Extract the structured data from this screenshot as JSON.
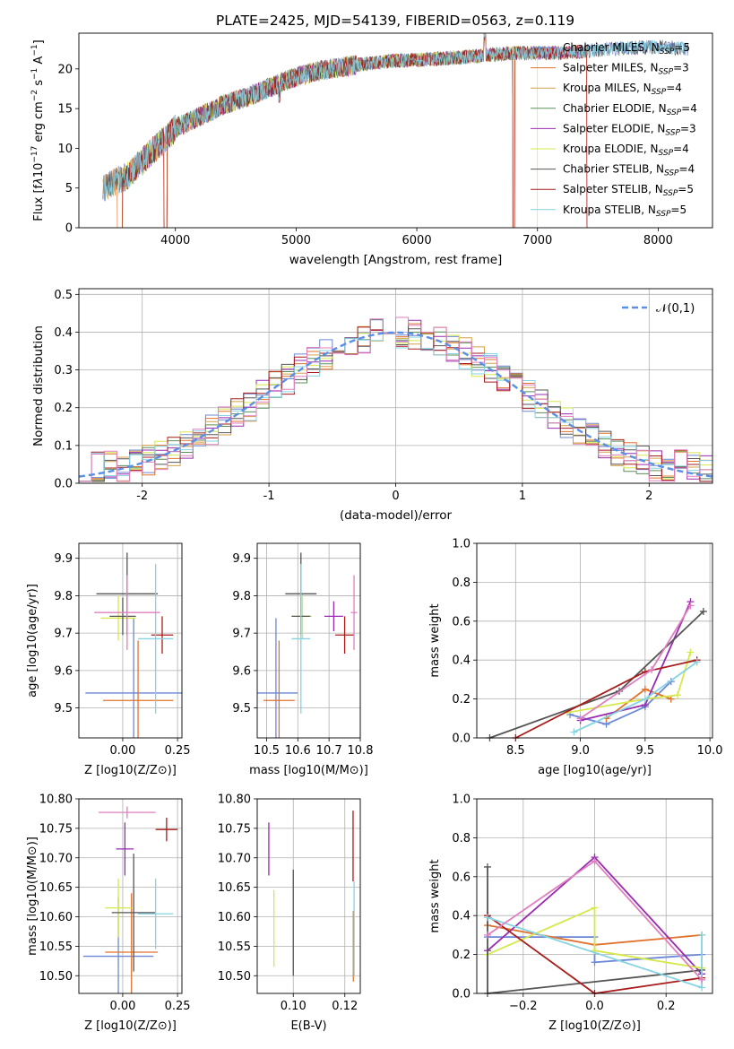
{
  "figure_title": "PLATE=2425, MJD=54139, FIBERID=0563, z=0.119",
  "colors": {
    "Chabrier MILES": "#6c87d6",
    "Salpeter MILES": "#e0722c",
    "Kroupa MILES": "#d4a04a",
    "Chabrier ELODIE": "#5b8f5b",
    "Salpeter ELODIE": "#9a2bb0",
    "Kroupa ELODIE": "#d6e84a",
    "Chabrier STELIB": "#555555",
    "Salpeter STELIB": "#a81c1c",
    "Kroupa STELIB": "#86d3e3",
    "Chabrier MILES pink": "#e07fc0",
    "normal": "#5b8fe6"
  },
  "chart_data": [
    {
      "id": "spectrum",
      "type": "line",
      "xlabel": "wavelength [Angstrom, rest frame]",
      "ylabel": "Flux [f_λ 10^-17 erg cm^-2 s^-1 A^-1]",
      "xlim": [
        3200,
        8450
      ],
      "ylim": [
        0,
        24.5
      ],
      "xticks": [
        4000,
        5000,
        6000,
        7000,
        8000
      ],
      "yticks": [
        0,
        5,
        10,
        15,
        20
      ],
      "legend_position": "right",
      "legend": [
        {
          "label": "Chabrier MILES, N",
          "sub": "SSP",
          "suffix": "=5"
        },
        {
          "label": "Salpeter MILES, N",
          "sub": "SSP",
          "suffix": "=3"
        },
        {
          "label": "Kroupa MILES, N",
          "sub": "SSP",
          "suffix": "=4"
        },
        {
          "label": "Chabrier ELODIE, N",
          "sub": "SSP",
          "suffix": "=4"
        },
        {
          "label": "Salpeter ELODIE, N",
          "sub": "SSP",
          "suffix": "=3"
        },
        {
          "label": "Kroupa ELODIE, N",
          "sub": "SSP",
          "suffix": "=4"
        },
        {
          "label": "Chabrier STELIB, N",
          "sub": "SSP",
          "suffix": "=4"
        },
        {
          "label": "Salpeter STELIB, N",
          "sub": "SSP",
          "suffix": "=5"
        },
        {
          "label": "Kroupa STELIB, N",
          "sub": "SSP",
          "suffix": "=5"
        }
      ],
      "continuum": [
        [
          3400,
          5.0
        ],
        [
          3600,
          6.5
        ],
        [
          3800,
          9.5
        ],
        [
          4000,
          12.5
        ],
        [
          4200,
          14.0
        ],
        [
          4400,
          15.5
        ],
        [
          4600,
          16.5
        ],
        [
          4800,
          17.8
        ],
        [
          5000,
          19.0
        ],
        [
          5200,
          19.8
        ],
        [
          5500,
          20.5
        ],
        [
          5800,
          21.0
        ],
        [
          6100,
          21.2
        ],
        [
          6400,
          21.5
        ],
        [
          6800,
          22.0
        ],
        [
          7200,
          22.0
        ],
        [
          7600,
          22.5
        ],
        [
          8000,
          22.8
        ],
        [
          8250,
          22.5
        ]
      ],
      "dropouts": [
        [
          3520,
          3560
        ],
        [
          3905,
          3930
        ],
        [
          6795,
          6810
        ],
        [
          7410,
          7420
        ]
      ]
    },
    {
      "id": "residual_histogram",
      "type": "line",
      "xlabel": "(data-model)/error",
      "ylabel": "Normed distribution",
      "xlim": [
        -2.5,
        2.5
      ],
      "ylim": [
        0,
        0.515
      ],
      "xticks": [
        -2,
        -1,
        0,
        1,
        2
      ],
      "yticks": [
        0.0,
        0.1,
        0.2,
        0.3,
        0.4,
        0.5
      ],
      "legend": "𝒩(0,1)",
      "legend_position": "upper right",
      "bin_width": 0.1,
      "reference_curve": "standard normal, mean 0, sigma 1"
    },
    {
      "id": "age_vs_Z",
      "type": "scatter",
      "xlabel": "Z [log10(Z/Z⊙)]",
      "ylabel": "age  [log10(age/yr)]",
      "xlim": [
        -0.2,
        0.27
      ],
      "ylim": [
        9.42,
        9.94
      ],
      "xticks": [
        0.0,
        0.25
      ],
      "xticklabels": [
        "0.00",
        "0.25"
      ],
      "yticks": [
        9.5,
        9.6,
        9.7,
        9.8,
        9.9
      ],
      "points": [
        {
          "series": "Chabrier MILES",
          "x": 0.05,
          "xerr": 0.22,
          "y": 9.54,
          "yerr": 0.2
        },
        {
          "series": "Salpeter MILES",
          "x": 0.07,
          "xerr": 0.16,
          "y": 9.52,
          "yerr": 0.16
        },
        {
          "series": "Kroupa ELODIE",
          "x": -0.02,
          "xerr": 0.08,
          "y": 9.74,
          "yerr": 0.06
        },
        {
          "series": "Chabrier STELIB",
          "x": 0.0,
          "xerr": 0.06,
          "y": 9.745,
          "yerr": 0.05
        },
        {
          "series": "Chabrier STELIB",
          "x": 0.02,
          "xerr": 0.14,
          "y": 9.805,
          "yerr": 0.11
        },
        {
          "series": "Salpeter STELIB",
          "x": 0.18,
          "xerr": 0.05,
          "y": 9.695,
          "yerr": 0.05
        },
        {
          "series": "Kroupa STELIB",
          "x": 0.15,
          "xerr": 0.08,
          "y": 9.685,
          "yerr": 0.2
        },
        {
          "series": "Chabrier MILES pink",
          "x": 0.02,
          "xerr": 0.15,
          "y": 9.755,
          "yerr": 0.1
        }
      ]
    },
    {
      "id": "age_vs_mass",
      "type": "scatter",
      "xlabel": "mass [log10(M/M⊙)]",
      "ylabel": "",
      "xlim": [
        10.47,
        10.8
      ],
      "ylim": [
        9.42,
        9.94
      ],
      "xticks": [
        10.5,
        10.6,
        10.7,
        10.8
      ],
      "yticks": [
        9.5,
        9.6,
        9.7,
        9.8,
        9.9
      ],
      "points": [
        {
          "series": "Chabrier MILES",
          "x": 10.53,
          "xerr": 0.07,
          "y": 9.54,
          "yerr": 0.2
        },
        {
          "series": "Salpeter MILES",
          "x": 10.54,
          "xerr": 0.05,
          "y": 9.52,
          "yerr": 0.16
        },
        {
          "series": "Kroupa ELODIE",
          "x": 10.615,
          "xerr": 0.03,
          "y": 9.745,
          "yerr": 0.06
        },
        {
          "series": "Chabrier STELIB",
          "x": 10.61,
          "xerr": 0.03,
          "y": 9.745,
          "yerr": 0.05
        },
        {
          "series": "Chabrier STELIB",
          "x": 10.61,
          "xerr": 0.05,
          "y": 9.805,
          "yerr": 0.11
        },
        {
          "series": "Salpeter ELODIE",
          "x": 10.715,
          "xerr": 0.03,
          "y": 9.745,
          "yerr": 0.04
        },
        {
          "series": "Salpeter STELIB",
          "x": 10.75,
          "xerr": 0.03,
          "y": 9.695,
          "yerr": 0.05
        },
        {
          "series": "Kroupa STELIB",
          "x": 10.61,
          "xerr": 0.03,
          "y": 9.685,
          "yerr": 0.2
        },
        {
          "series": "Chabrier MILES pink",
          "x": 10.78,
          "xerr": 0.01,
          "y": 9.755,
          "yerr": 0.1
        }
      ]
    },
    {
      "id": "weight_vs_age",
      "type": "line",
      "xlabel": "age  [log10(age/yr)]",
      "ylabel": "mass weight",
      "xlim": [
        8.2,
        10.02
      ],
      "ylim": [
        0,
        1.0
      ],
      "xticks": [
        8.5,
        9.0,
        9.5,
        10.0
      ],
      "yticks": [
        0.0,
        0.2,
        0.4,
        0.6,
        0.8,
        1.0
      ],
      "series": [
        {
          "name": "Chabrier MILES",
          "x": [
            8.92,
            9.2,
            9.5,
            9.7
          ],
          "y": [
            0.12,
            0.07,
            0.16,
            0.29
          ]
        },
        {
          "name": "Salpeter MILES",
          "x": [
            9.2,
            9.5,
            9.7
          ],
          "y": [
            0.1,
            0.25,
            0.2
          ]
        },
        {
          "name": "Salpeter ELODIE",
          "x": [
            9.0,
            9.5,
            9.85
          ],
          "y": [
            0.09,
            0.17,
            0.7
          ]
        },
        {
          "name": "Kroupa ELODIE",
          "x": [
            8.9,
            9.5,
            9.75,
            9.85
          ],
          "y": [
            0.13,
            0.2,
            0.22,
            0.44
          ]
        },
        {
          "name": "Chabrier STELIB",
          "x": [
            8.3,
            9.3,
            9.95
          ],
          "y": [
            0.0,
            0.24,
            0.65
          ]
        },
        {
          "name": "Salpeter STELIB",
          "x": [
            8.5,
            9.5,
            9.9
          ],
          "y": [
            0.0,
            0.34,
            0.4
          ]
        },
        {
          "name": "Kroupa STELIB",
          "x": [
            8.95,
            9.5,
            9.9
          ],
          "y": [
            0.03,
            0.2,
            0.39
          ]
        },
        {
          "name": "Chabrier MILES pink",
          "x": [
            9.0,
            9.55,
            9.85
          ],
          "y": [
            0.1,
            0.35,
            0.68
          ]
        }
      ]
    },
    {
      "id": "mass_vs_Z",
      "type": "scatter",
      "xlabel": "Z [log10(Z/Z⊙)]",
      "ylabel": "mass [log10(M/M⊙)]",
      "xlim": [
        -0.2,
        0.27
      ],
      "ylim": [
        10.47,
        10.8
      ],
      "xticks": [
        0.0,
        0.25
      ],
      "xticklabels": [
        "0.00",
        "0.25"
      ],
      "yticks": [
        10.5,
        10.55,
        10.6,
        10.65,
        10.7,
        10.75,
        10.8
      ],
      "points": [
        {
          "series": "Chabrier MILES",
          "x": -0.02,
          "xerr": 0.16,
          "y": 10.533,
          "yerr": 0.1
        },
        {
          "series": "Salpeter MILES",
          "x": 0.04,
          "xerr": 0.12,
          "y": 10.54,
          "yerr": 0.1
        },
        {
          "series": "Kroupa ELODIE",
          "x": -0.02,
          "xerr": 0.06,
          "y": 10.615,
          "yerr": 0.05
        },
        {
          "series": "Chabrier STELIB",
          "x": 0.05,
          "xerr": 0.1,
          "y": 10.607,
          "yerr": 0.1
        },
        {
          "series": "Salpeter ELODIE",
          "x": 0.01,
          "xerr": 0.04,
          "y": 10.715,
          "yerr": 0.045
        },
        {
          "series": "Salpeter STELIB",
          "x": 0.2,
          "xerr": 0.05,
          "y": 10.748,
          "yerr": 0.02
        },
        {
          "series": "Kroupa STELIB",
          "x": 0.15,
          "xerr": 0.08,
          "y": 10.605,
          "yerr": 0.06
        },
        {
          "series": "Chabrier MILES pink",
          "x": 0.02,
          "xerr": 0.13,
          "y": 10.777,
          "yerr": 0.01
        }
      ]
    },
    {
      "id": "mass_vs_ebv",
      "type": "scatter",
      "xlabel": "E(B-V)",
      "ylabel": "",
      "xlim": [
        0.086,
        0.126
      ],
      "ylim": [
        10.47,
        10.8
      ],
      "xticks": [
        0.1,
        0.12
      ],
      "xticklabels": [
        "0.10",
        "0.12"
      ],
      "yticks": [
        10.5,
        10.55,
        10.6,
        10.65,
        10.7,
        10.75,
        10.8
      ],
      "points": [
        {
          "series": "Salpeter ELODIE",
          "x": 0.0905,
          "y": 10.715,
          "yerr": 0.045
        },
        {
          "series": "Kroupa ELODIE",
          "x": 0.0925,
          "y": 10.58,
          "yerr": 0.065
        },
        {
          "series": "Chabrier STELIB",
          "x": 0.1,
          "y": 10.59,
          "yerr": 0.09
        },
        {
          "series": "Salpeter STELIB",
          "x": 0.1232,
          "y": 10.72,
          "yerr": 0.06
        },
        {
          "series": "Salpeter MILES",
          "x": 0.1233,
          "y": 10.55,
          "yerr": 0.06
        },
        {
          "series": "Kroupa STELIB",
          "x": 0.1236,
          "y": 10.58,
          "yerr": 0.08
        }
      ]
    },
    {
      "id": "weight_vs_Z",
      "type": "line",
      "xlabel": "Z [log10(Z/Z⊙)]",
      "ylabel": "mass weight",
      "xlim": [
        -0.33,
        0.33
      ],
      "ylim": [
        0,
        1.0
      ],
      "xticks": [
        -0.2,
        0.0,
        0.2
      ],
      "yticks": [
        0.0,
        0.2,
        0.4,
        0.6,
        0.8,
        1.0
      ],
      "series": [
        {
          "name": "Chabrier MILES",
          "x": [
            -0.3,
            0.0,
            0.0,
            0.3
          ],
          "y": [
            0.29,
            0.29,
            0.16,
            0.2
          ]
        },
        {
          "name": "Salpeter MILES",
          "x": [
            -0.3,
            0.0,
            0.3
          ],
          "y": [
            0.35,
            0.25,
            0.3
          ]
        },
        {
          "name": "Salpeter ELODIE",
          "x": [
            -0.3,
            0.0,
            0.3
          ],
          "y": [
            0.22,
            0.7,
            0.1
          ]
        },
        {
          "name": "Kroupa ELODIE",
          "x": [
            -0.3,
            0.0,
            0.0,
            0.3
          ],
          "y": [
            0.2,
            0.44,
            0.22,
            0.13
          ]
        },
        {
          "name": "Chabrier STELIB",
          "x": [
            -0.3,
            -0.3,
            0.3
          ],
          "y": [
            0.65,
            0.0,
            0.12
          ]
        },
        {
          "name": "Salpeter STELIB",
          "x": [
            -0.3,
            0.0,
            0.3
          ],
          "y": [
            0.4,
            0.0,
            0.08
          ]
        },
        {
          "name": "Kroupa STELIB",
          "x": [
            -0.3,
            0.3,
            0.3
          ],
          "y": [
            0.39,
            0.03,
            0.3
          ]
        },
        {
          "name": "Chabrier MILES pink",
          "x": [
            -0.3,
            0.0,
            0.3
          ],
          "y": [
            0.3,
            0.68,
            0.07
          ]
        }
      ]
    }
  ]
}
